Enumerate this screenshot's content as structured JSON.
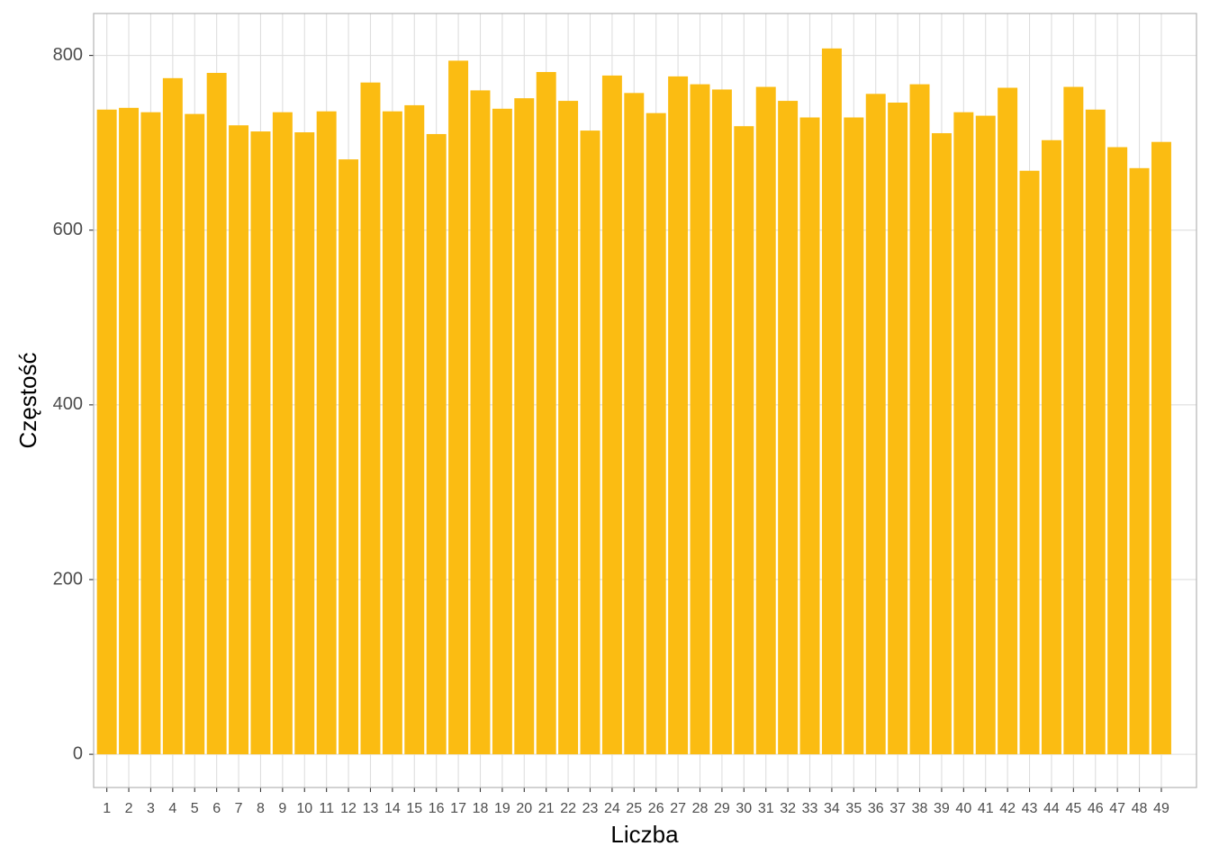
{
  "chart_data": {
    "type": "bar",
    "x_label": "Liczba",
    "y_label": "Częstość",
    "categories": [
      "1",
      "2",
      "3",
      "4",
      "5",
      "6",
      "7",
      "8",
      "9",
      "10",
      "11",
      "12",
      "13",
      "14",
      "15",
      "16",
      "17",
      "18",
      "19",
      "20",
      "21",
      "22",
      "23",
      "24",
      "25",
      "26",
      "27",
      "28",
      "29",
      "30",
      "31",
      "32",
      "33",
      "34",
      "35",
      "36",
      "37",
      "38",
      "39",
      "40",
      "41",
      "42",
      "43",
      "44",
      "45",
      "46",
      "47",
      "48",
      "49"
    ],
    "values": [
      738,
      740,
      735,
      774,
      733,
      780,
      720,
      713,
      735,
      712,
      736,
      681,
      769,
      736,
      743,
      710,
      794,
      760,
      739,
      751,
      781,
      748,
      714,
      777,
      757,
      734,
      776,
      767,
      761,
      719,
      764,
      748,
      729,
      808,
      729,
      756,
      746,
      767,
      711,
      735,
      731,
      763,
      668,
      703,
      764,
      738,
      695,
      671,
      701
    ],
    "color": "#fbbc12",
    "ylim": [
      -38,
      848
    ],
    "yticks": [
      0,
      200,
      400,
      600,
      800
    ],
    "grid": true
  }
}
